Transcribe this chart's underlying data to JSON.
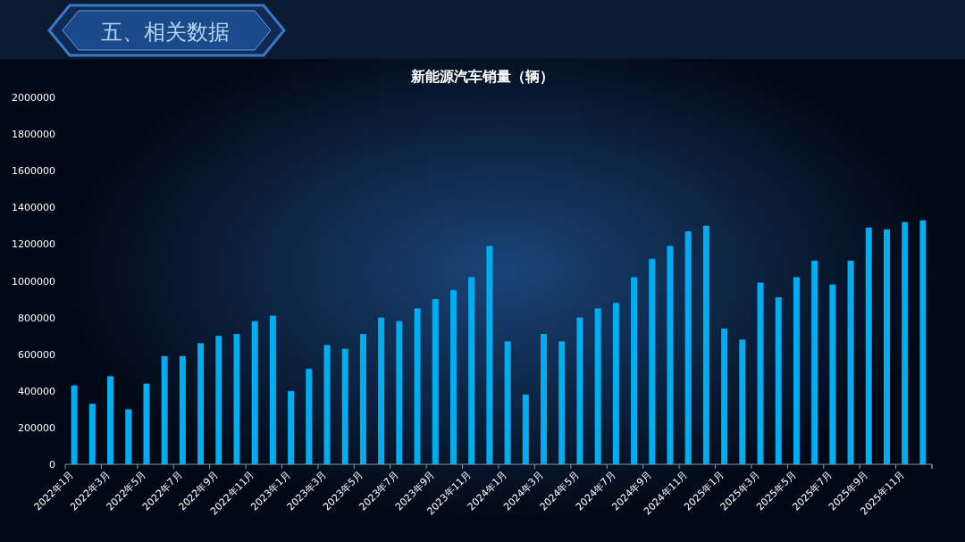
{
  "chart_data": {
    "type": "bar",
    "title": "新能源汽车销量（辆）",
    "annotations": [
      "五、相关数据"
    ],
    "categories": [
      "2022年1月",
      null,
      "2022年3月",
      null,
      "2022年5月",
      null,
      "2022年7月",
      null,
      "2022年9月",
      null,
      "2022年11月",
      null,
      "2023年1月",
      null,
      "2023年3月",
      null,
      "2023年5月",
      null,
      "2023年7月",
      null,
      "2023年9月",
      null,
      "2023年11月",
      null,
      "2024年1月",
      null,
      "2024年3月",
      null,
      "2024年5月",
      null,
      "2024年7月",
      null,
      "2024年9月",
      null,
      "2024年11月",
      null,
      "2025年1月",
      null,
      "2025年3月",
      null,
      "2025年5月",
      null,
      "2025年7月",
      null,
      "2025年9月",
      null,
      "2025年11月",
      null
    ],
    "values": [
      430000,
      330000,
      480000,
      300000,
      440000,
      590000,
      590000,
      660000,
      700000,
      710000,
      780000,
      810000,
      400000,
      520000,
      650000,
      630000,
      710000,
      800000,
      780000,
      850000,
      900000,
      950000,
      1020000,
      1190000,
      670000,
      380000,
      710000,
      670000,
      800000,
      850000,
      880000,
      1020000,
      1120000,
      1190000,
      1270000,
      1300000,
      740000,
      680000,
      990000,
      910000,
      1020000,
      1110000,
      980000,
      1110000,
      1290000,
      1280000,
      1320000,
      1330000
    ],
    "color": "#00aeef",
    "ylim": [
      0,
      2000000
    ],
    "yticks": [
      0,
      200000,
      400000,
      600000,
      800000,
      1000000,
      1200000,
      1400000,
      1600000,
      1800000,
      2000000
    ],
    "grid": false
  }
}
